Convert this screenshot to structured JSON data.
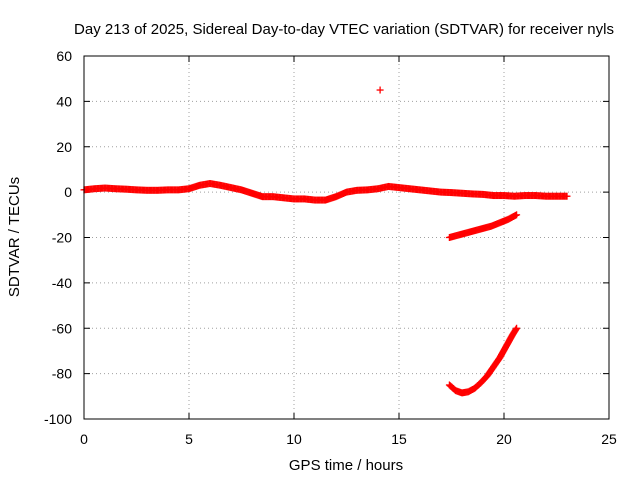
{
  "chart_data": {
    "type": "scatter",
    "title": "Day 213 of 2025, Sidereal Day-to-day VTEC variation (SDTVAR) for receiver nyls",
    "xlabel": "GPS time / hours",
    "ylabel": "SDTVAR / TECUs",
    "xlim": [
      0,
      25
    ],
    "ylim": [
      -100,
      60
    ],
    "xticks": [
      "0",
      "5",
      "10",
      "15",
      "20",
      "25"
    ],
    "yticks": [
      "60",
      "40",
      "20",
      "0",
      "-20",
      "-40",
      "-60",
      "-80",
      "-100"
    ],
    "grid": true,
    "marker": "+",
    "color": "#ff0000",
    "series": [
      {
        "name": "main",
        "x": [
          0,
          0.5,
          1,
          1.5,
          2,
          2.5,
          3,
          3.5,
          4,
          4.5,
          5,
          5.5,
          6,
          6.5,
          7,
          7.5,
          8,
          8.5,
          9,
          9.5,
          10,
          10.5,
          11,
          11.5,
          12,
          12.5,
          13,
          13.5,
          14,
          14.5,
          15,
          15.5,
          16,
          16.5,
          17,
          17.5,
          18,
          18.5,
          19,
          19.5,
          20,
          20.5,
          21,
          21.5,
          22,
          22.5,
          23
        ],
        "y": [
          1,
          1.5,
          1.8,
          1.5,
          1.3,
          1,
          0.8,
          0.8,
          1,
          1,
          1.5,
          3,
          3.8,
          3,
          2,
          1,
          -0.5,
          -2,
          -2,
          -2.5,
          -3,
          -3,
          -3.5,
          -3.5,
          -2,
          0,
          0.8,
          1,
          1.5,
          2.5,
          2,
          1.5,
          1,
          0.5,
          0,
          -0.2,
          -0.5,
          -0.8,
          -1,
          -1.5,
          -1.5,
          -1.8,
          -1.5,
          -1.5,
          -1.8,
          -1.8,
          -1.8
        ]
      },
      {
        "name": "upper-branch",
        "x": [
          17.4,
          17.8,
          18.2,
          18.6,
          19,
          19.4,
          19.8,
          20.2,
          20.6
        ],
        "y": [
          -20,
          -19,
          -18,
          -17,
          -16,
          -15,
          -13.5,
          -12,
          -10
        ]
      },
      {
        "name": "lower-branch",
        "x": [
          17.4,
          17.7,
          18,
          18.3,
          18.6,
          18.9,
          19.2,
          19.5,
          19.8,
          20.1,
          20.4,
          20.6
        ],
        "y": [
          -85,
          -87.5,
          -88.5,
          -88,
          -86.5,
          -84,
          -81,
          -77,
          -73,
          -68,
          -63,
          -60
        ]
      },
      {
        "name": "outlier",
        "x": [
          14.1
        ],
        "y": [
          45
        ]
      }
    ]
  }
}
